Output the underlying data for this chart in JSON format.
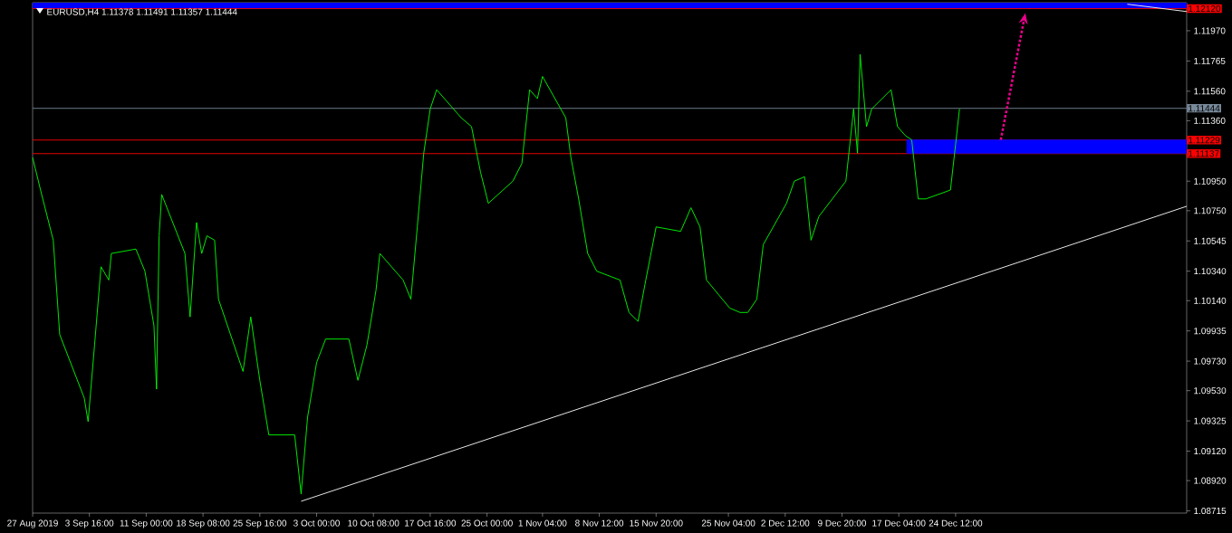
{
  "chart_data": {
    "type": "line",
    "title": "EURUSD,H4  1.11378 1.11491 1.11357 1.11444",
    "xlim": [
      "2019-08-27T08:00",
      "2020-01-23T08:00"
    ],
    "ylim": [
      1.087,
      1.1216
    ],
    "xticks": [
      {
        "value": "2019-08-27T08:00",
        "label": "27 Aug 2019"
      },
      {
        "value": "2019-09-03T16:00",
        "label": "3 Sep 16:00"
      },
      {
        "value": "2019-09-11T00:00",
        "label": "11 Sep 00:00"
      },
      {
        "value": "2019-09-18T08:00",
        "label": "18 Sep 08:00"
      },
      {
        "value": "2019-09-25T16:00",
        "label": "25 Sep 16:00"
      },
      {
        "value": "2019-10-03T00:00",
        "label": "3 Oct 00:00"
      },
      {
        "value": "2019-10-10T08:00",
        "label": "10 Oct 08:00"
      },
      {
        "value": "2019-10-17T16:00",
        "label": "17 Oct 16:00"
      },
      {
        "value": "2019-10-25T00:00",
        "label": "25 Oct 00:00"
      },
      {
        "value": "2019-11-01T04:00",
        "label": "1 Nov 04:00"
      },
      {
        "value": "2019-11-08T12:00",
        "label": "8 Nov 12:00"
      },
      {
        "value": "2019-11-15T20:00",
        "label": "15 Nov 20:00"
      },
      {
        "value": "2019-11-25T04:00",
        "label": "25 Nov 04:00"
      },
      {
        "value": "2019-12-02T12:00",
        "label": "2 Dec 12:00"
      },
      {
        "value": "2019-12-09T20:00",
        "label": "9 Dec 20:00"
      },
      {
        "value": "2019-12-17T04:00",
        "label": "17 Dec 04:00"
      },
      {
        "value": "2019-12-24T12:00",
        "label": "24 Dec 12:00"
      }
    ],
    "yticks": [
      {
        "value": 1.08715,
        "label": "1.08715"
      },
      {
        "value": 1.0892,
        "label": "1.08920"
      },
      {
        "value": 1.0912,
        "label": "1.09120"
      },
      {
        "value": 1.09325,
        "label": "1.09325"
      },
      {
        "value": 1.0953,
        "label": "1.09530"
      },
      {
        "value": 1.0973,
        "label": "1.09730"
      },
      {
        "value": 1.09935,
        "label": "1.09935"
      },
      {
        "value": 1.1014,
        "label": "1.10140"
      },
      {
        "value": 1.1034,
        "label": "1.10340"
      },
      {
        "value": 1.10545,
        "label": "1.10545"
      },
      {
        "value": 1.1075,
        "label": "1.10750"
      },
      {
        "value": 1.1095,
        "label": "1.10950"
      },
      {
        "value": 1.1136,
        "label": "1.11360"
      },
      {
        "value": 1.1156,
        "label": "1.11560"
      },
      {
        "value": 1.11765,
        "label": "1.11765"
      },
      {
        "value": 1.1197,
        "label": "1.11970"
      }
    ],
    "series": [
      {
        "color": "#00ff00",
        "x": [
          "2019-08-27T08:00",
          "2019-08-28T12:00",
          "2019-08-30T00:00",
          "2019-08-30T20:00",
          "2019-09-03T00:00",
          "2019-09-03T12:00",
          "2019-09-04T08:00",
          "2019-09-05T04:00",
          "2019-09-06T04:00",
          "2019-09-06T12:00",
          "2019-09-09T16:00",
          "2019-09-10T20:00",
          "2019-09-12T00:00",
          "2019-09-12T08:00",
          "2019-09-12T16:00",
          "2019-09-13T00:00",
          "2019-09-16T00:00",
          "2019-09-16T16:00",
          "2019-09-17T12:00",
          "2019-09-18T04:00",
          "2019-09-18T20:00",
          "2019-09-19T20:00",
          "2019-09-20T08:00",
          "2019-09-23T12:00",
          "2019-09-24T12:00",
          "2019-09-25T16:00",
          "2019-09-26T20:00",
          "2019-09-30T04:00",
          "2019-10-01T00:00",
          "2019-10-01T20:00",
          "2019-10-03T00:00",
          "2019-10-04T04:00",
          "2019-10-07T04:00",
          "2019-10-08T08:00",
          "2019-10-09T12:00",
          "2019-10-10T16:00",
          "2019-10-11T04:00",
          "2019-10-14T04:00",
          "2019-10-15T04:00",
          "2019-10-16T00:00",
          "2019-10-16T20:00",
          "2019-10-17T16:00",
          "2019-10-18T12:00",
          "2019-10-21T16:00",
          "2019-10-23T00:00",
          "2019-10-24T04:00",
          "2019-10-25T04:00",
          "2019-10-28T08:00",
          "2019-10-29T12:00",
          "2019-10-30T12:00",
          "2019-10-31T12:00",
          "2019-11-01T04:00",
          "2019-11-04T04:00",
          "2019-11-04T20:00",
          "2019-11-05T20:00",
          "2019-11-07T00:00",
          "2019-11-08T04:00",
          "2019-11-11T04:00",
          "2019-11-12T08:00",
          "2019-11-13T12:00",
          "2019-11-14T12:00",
          "2019-11-15T20:00",
          "2019-11-19T00:00",
          "2019-11-20T08:00",
          "2019-11-21T12:00",
          "2019-11-22T08:00",
          "2019-11-25T08:00",
          "2019-11-26T16:00",
          "2019-11-27T16:00",
          "2019-11-28T20:00",
          "2019-11-29T16:00",
          "2019-12-02T16:00",
          "2019-12-03T16:00",
          "2019-12-05T00:00",
          "2019-12-05T20:00",
          "2019-12-06T20:00",
          "2019-12-10T08:00",
          "2019-12-11T08:00",
          "2019-12-11T20:00",
          "2019-12-12T04:00",
          "2019-12-13T00:00",
          "2019-12-13T16:00",
          "2019-12-16T04:00",
          "2019-12-17T00:00",
          "2019-12-18T00:00",
          "2019-12-18T20:00",
          "2019-12-19T16:00",
          "2019-12-20T16:00",
          "2019-12-23T20:00",
          "2019-12-24T12:00",
          "2019-12-25T00:00"
        ],
        "values": [
          1.1111,
          1.1086,
          1.1055,
          1.0991,
          1.0948,
          1.0932,
          1.0984,
          1.1037,
          1.1028,
          1.1046,
          1.1049,
          1.1034,
          1.0997,
          1.0954,
          1.1058,
          1.1086,
          1.1046,
          1.1003,
          1.1067,
          1.1046,
          1.1058,
          1.1055,
          1.1015,
          1.0966,
          1.1003,
          1.096,
          1.0923,
          1.0923,
          1.0883,
          1.0935,
          1.0972,
          1.0988,
          1.0988,
          1.096,
          1.0984,
          1.1021,
          1.1046,
          1.1028,
          1.1015,
          1.1064,
          1.1114,
          1.1144,
          1.1157,
          1.1138,
          1.1132,
          1.1101,
          1.108,
          1.1095,
          1.1107,
          1.1157,
          1.1151,
          1.1166,
          1.1138,
          1.1111,
          1.1083,
          1.1046,
          1.1034,
          1.1028,
          1.1006,
          1.1,
          1.1028,
          1.1064,
          1.1061,
          1.1077,
          1.1064,
          1.1028,
          1.1009,
          1.1006,
          1.1006,
          1.1015,
          1.1052,
          1.108,
          1.1095,
          1.1098,
          1.1055,
          1.1071,
          1.1095,
          1.1144,
          1.1114,
          1.1181,
          1.1132,
          1.1144,
          1.1157,
          1.1132,
          1.1126,
          1.1123,
          1.1083,
          1.1083,
          1.1089,
          1.112,
          1.1144
        ]
      },
      {
        "type": "line",
        "color": "#ffffff",
        "x": [
          "2019-10-01T00:00",
          "2020-01-23T08:00"
        ],
        "values": [
          1.0878,
          1.1078
        ]
      },
      {
        "type": "line",
        "color": "#ffffff",
        "x": [
          "2020-01-15T16:00",
          "2020-01-23T08:00"
        ],
        "values": [
          1.1215,
          1.121
        ]
      },
      {
        "type": "line",
        "color": "#0000ff",
        "x": [
          "2019-12-18T04:00",
          "2020-01-23T08:00"
        ],
        "values": [
          1.11229,
          1.11229
        ],
        "lower": [
          1.11137,
          1.11137
        ],
        "upper": [
          1.11229,
          1.11229
        ]
      }
    ],
    "bands": [
      {
        "axis": "y",
        "from": 1.1212,
        "to": 1.1216,
        "color": "#0000ff"
      }
    ],
    "ref_lines": [
      {
        "axis": "y",
        "value": 1.1212,
        "label": "1.12120",
        "color": "#ff0000"
      },
      {
        "axis": "y",
        "value": 1.11444,
        "label": "1.11444",
        "color": "#778899"
      },
      {
        "axis": "y",
        "value": 1.11229,
        "label": "1.11229",
        "color": "#ff0000"
      },
      {
        "axis": "y",
        "value": 1.11137,
        "label": "1.11137",
        "color": "#ff0000"
      }
    ]
  }
}
